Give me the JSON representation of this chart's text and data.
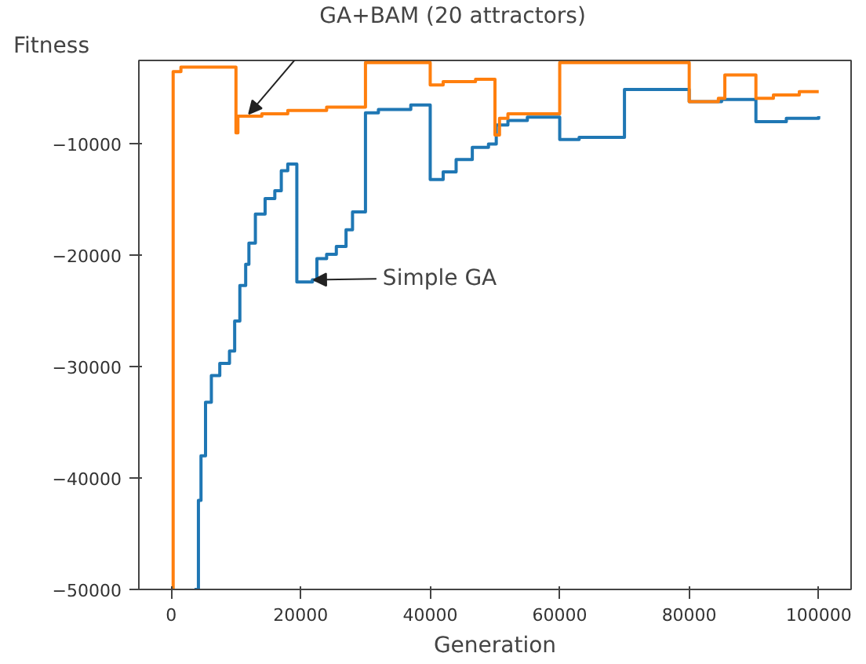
{
  "chart_data": {
    "type": "step",
    "xlabel": "Generation",
    "ylabel": "Fitness",
    "xlim": [
      -5000,
      105000
    ],
    "ylim": [
      -50000,
      -2500
    ],
    "xticks": [
      0,
      20000,
      40000,
      60000,
      80000,
      100000
    ],
    "yticks": [
      -50000,
      -40000,
      -30000,
      -20000,
      -10000
    ],
    "grid": false,
    "marker": "none",
    "line_style": "solid",
    "series": [
      {
        "color": "#1f77b4",
        "x": [
          3600,
          4200,
          4600,
          5300,
          6200,
          7500,
          9000,
          9800,
          10600,
          11500,
          12000,
          13000,
          14500,
          16000,
          17000,
          18000,
          19400,
          21800,
          22500,
          24000,
          25500,
          27000,
          28000,
          30000,
          32000,
          37000,
          40000,
          42000,
          44000,
          46500,
          49000,
          50200,
          52000,
          55000,
          60000,
          63000,
          70000,
          80000,
          85000,
          90300,
          95000,
          100000
        ],
        "values": [
          -50000,
          -42000,
          -38000,
          -33200,
          -30800,
          -29700,
          -28600,
          -25900,
          -22700,
          -20800,
          -18900,
          -16300,
          -14900,
          -14200,
          -12400,
          -11800,
          -22400,
          -22200,
          -20300,
          -19900,
          -19200,
          -17700,
          -16100,
          -7200,
          -6900,
          -6500,
          -13200,
          -12500,
          -11400,
          -10300,
          -10000,
          -8300,
          -7900,
          -7600,
          -9600,
          -9400,
          -5100,
          -6200,
          -6000,
          -8000,
          -7700,
          -7500
        ]
      },
      {
        "color": "#ff7f0e",
        "x": [
          0,
          300,
          1500,
          10000,
          10300,
          14000,
          18000,
          24000,
          30000,
          40000,
          42000,
          47000,
          50000,
          50700,
          52000,
          60000,
          80000,
          84500,
          85500,
          90300,
          93000,
          97000,
          100000
        ],
        "values": [
          -50000,
          -3500,
          -3100,
          -9000,
          -7500,
          -7300,
          -7000,
          -6700,
          -2700,
          -4700,
          -4400,
          -4200,
          -9200,
          -7700,
          -7300,
          -2700,
          -6200,
          -5900,
          -3800,
          -5900,
          -5600,
          -5300,
          -5300
        ]
      }
    ],
    "annotations": [
      {
        "text": "GA+BAM (20 attractors)",
        "x": 12000,
        "y": -7300
      },
      {
        "text": "Simple GA",
        "x": 22000,
        "y": -22200
      }
    ]
  }
}
